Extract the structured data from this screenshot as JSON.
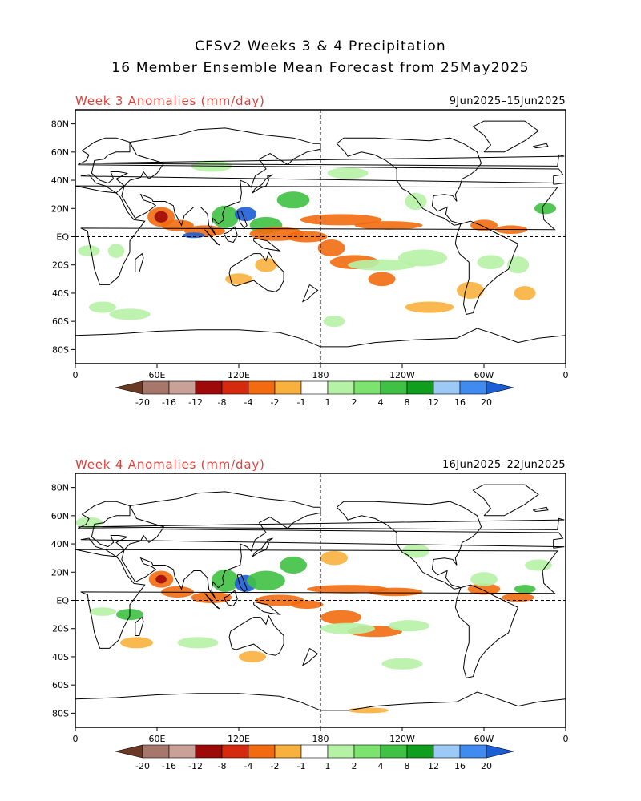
{
  "title": {
    "line1": "CFSv2 Weeks 3 & 4 Precipitation",
    "line2": "16 Member Ensemble Mean Forecast from 25May2025"
  },
  "panels": [
    {
      "label": "Week 3 Anomalies (mm/day)",
      "dates": "9Jun2025–15Jun2025"
    },
    {
      "label": "Week 4 Anomalies (mm/day)",
      "dates": "16Jun2025–22Jun2025"
    }
  ],
  "axes": {
    "lat_labels": [
      "80N",
      "60N",
      "40N",
      "20N",
      "EQ",
      "20S",
      "40S",
      "60S",
      "80S"
    ],
    "lon_labels": [
      "0",
      "60E",
      "120E",
      "180",
      "120W",
      "60W",
      "0"
    ]
  },
  "colorbar": {
    "labels": [
      "-20",
      "-16",
      "-12",
      "-8",
      "-4",
      "-2",
      "-1",
      "1",
      "2",
      "4",
      "8",
      "12",
      "16",
      "20"
    ],
    "colors": [
      "#6b3a25",
      "#a8776c",
      "#c9a196",
      "#9e0a0a",
      "#d62a0f",
      "#f26b10",
      "#f9b13d",
      "#ffffff",
      "#b6f2a6",
      "#7be36e",
      "#3fc144",
      "#109e1f",
      "#9cc9f5",
      "#3f8bf0",
      "#1c5ed6"
    ]
  },
  "colors": {
    "anomaly_label": "#e0403a",
    "dry_strong": "#9e0a0a",
    "dry": "#f26b10",
    "dry_light": "#f9b13d",
    "wet_light": "#b6f2a6",
    "wet": "#3fc144",
    "wet_strong": "#1c5ed6"
  }
}
